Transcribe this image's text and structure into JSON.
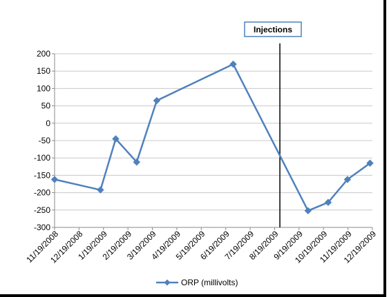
{
  "chart_data": {
    "type": "line",
    "x": [
      "11/19/2008",
      "12/19/2008",
      "1/19/2009",
      "2/19/2009",
      "3/19/2009",
      "4/19/2009",
      "5/19/2009",
      "6/19/2009",
      "7/19/2009",
      "8/19/2009",
      "9/19/2009",
      "10/19/2009",
      "11/19/2009",
      "12/19/2009"
    ],
    "series": [
      {
        "name": "ORP (millivolts)",
        "color": "#4F81BD",
        "points": [
          {
            "x": "11/19/2008",
            "y": -162
          },
          {
            "x": "1/15/2009",
            "y": -192
          },
          {
            "x": "2/3/2009",
            "y": -45
          },
          {
            "x": "3/1/2009",
            "y": -112
          },
          {
            "x": "3/26/2009",
            "y": 65
          },
          {
            "x": "6/29/2009",
            "y": 170
          },
          {
            "x": "9/30/2009",
            "y": -252
          },
          {
            "x": "10/25/2009",
            "y": -228
          },
          {
            "x": "11/18/2009",
            "y": -162
          },
          {
            "x": "12/16/2009",
            "y": -115
          }
        ]
      }
    ],
    "ylim": [
      -300,
      200
    ],
    "yticks": [
      200,
      150,
      100,
      50,
      0,
      -50,
      -100,
      -150,
      -200,
      -250,
      -300
    ],
    "ylabel": "",
    "xlabel": "",
    "title": "",
    "grid": true,
    "legend": "bottom",
    "annotations": [
      {
        "label": "Injections",
        "x": "8/26/2009",
        "kind": "vertical-line"
      }
    ]
  }
}
